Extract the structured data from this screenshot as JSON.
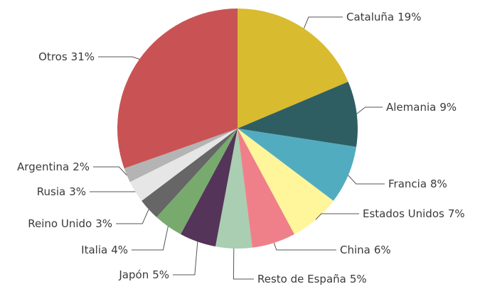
{
  "chart_data": {
    "type": "pie",
    "categories": [
      "Cataluña",
      "Alemania",
      "Francia",
      "Estados Unidos",
      "China",
      "Resto de España",
      "Japón",
      "Italia",
      "Reino Unido",
      "Rusia",
      "Argentina",
      "Otros"
    ],
    "values": [
      19,
      9,
      8,
      7,
      6,
      5,
      5,
      4,
      3,
      3,
      2,
      31
    ],
    "value_labels": [
      "19%",
      "9%",
      "8%",
      "7%",
      "6%",
      "5%",
      "5%",
      "4%",
      "3%",
      "3%",
      "2%",
      "31%"
    ],
    "colors": [
      "#d8bb2e",
      "#2f5e62",
      "#52acbf",
      "#fff59b",
      "#ef8089",
      "#a9ceb1",
      "#543459",
      "#78aa6e",
      "#666666",
      "#e6e6e6",
      "#b4b4b4",
      "#c95354"
    ]
  }
}
